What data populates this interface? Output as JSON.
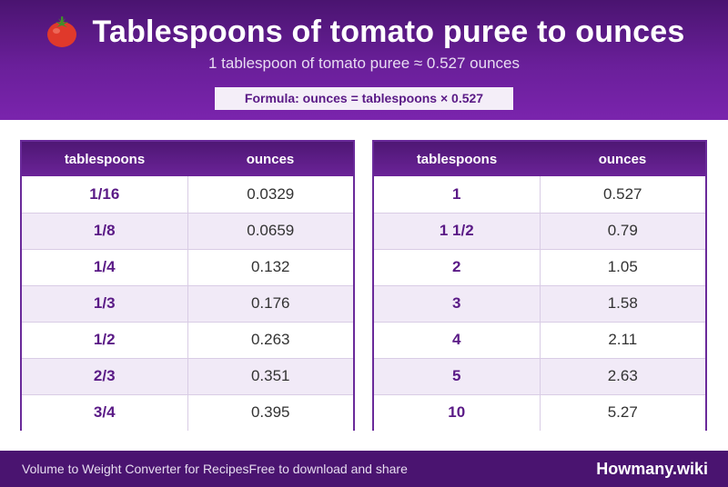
{
  "header": {
    "title": "Tablespoons of tomato puree to ounces",
    "subtitle": "1 tablespoon of tomato puree ≈ 0.527 ounces",
    "formula": "Formula: ounces = tablespoons × 0.527",
    "icon": "tomato-icon"
  },
  "table_left": {
    "headers": [
      "tablespoons",
      "ounces"
    ],
    "rows": [
      {
        "tbsp": "1/16",
        "oz": "0.0329"
      },
      {
        "tbsp": "1/8",
        "oz": "0.0659"
      },
      {
        "tbsp": "1/4",
        "oz": "0.132"
      },
      {
        "tbsp": "1/3",
        "oz": "0.176"
      },
      {
        "tbsp": "1/2",
        "oz": "0.263"
      },
      {
        "tbsp": "2/3",
        "oz": "0.351"
      },
      {
        "tbsp": "3/4",
        "oz": "0.395"
      }
    ]
  },
  "table_right": {
    "headers": [
      "tablespoons",
      "ounces"
    ],
    "rows": [
      {
        "tbsp": "1",
        "oz": "0.527"
      },
      {
        "tbsp": "1 1/2",
        "oz": "0.79"
      },
      {
        "tbsp": "2",
        "oz": "1.05"
      },
      {
        "tbsp": "3",
        "oz": "1.58"
      },
      {
        "tbsp": "4",
        "oz": "2.11"
      },
      {
        "tbsp": "5",
        "oz": "2.63"
      },
      {
        "tbsp": "10",
        "oz": "5.27"
      }
    ]
  },
  "footer": {
    "left_text": "Volume to Weight Converter for RecipesFree to download and share",
    "brand": "Howmany.wiki"
  },
  "colors": {
    "primary": "#6a1f9a",
    "dark": "#4a1470",
    "accent_text": "#5a1a86",
    "row_alt": "#f1eaf7",
    "tomato": "#e0392b"
  }
}
